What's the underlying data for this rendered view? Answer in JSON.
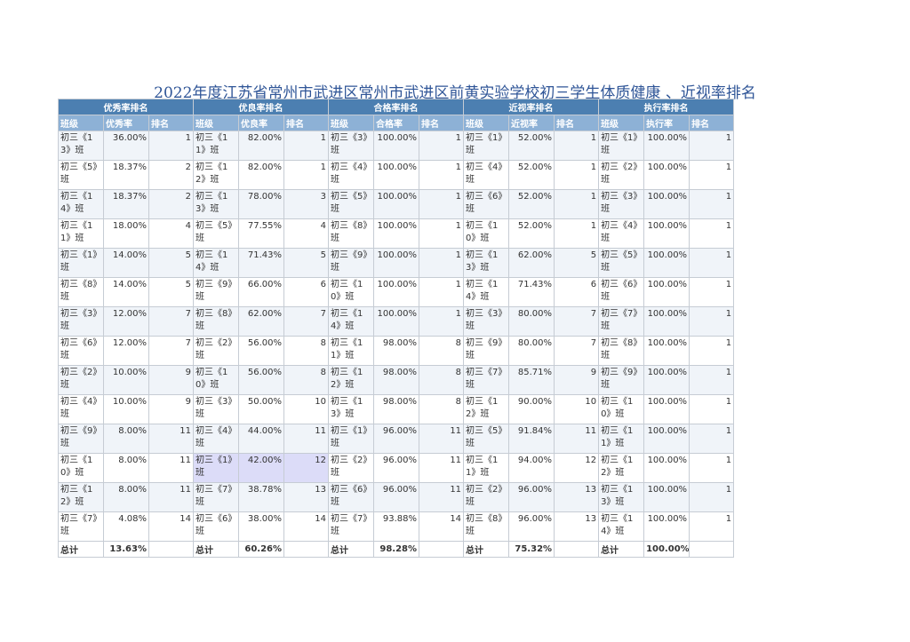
{
  "title": "2022年度江苏省常州市武进区常州市武进区前黄实验学校初三学生体质健康 、近视率排名",
  "groups": [
    {
      "header": "优秀率排名",
      "cols": [
        "班级",
        "优秀率",
        "排名"
      ],
      "rows": [
        [
          "初三《13》班",
          "36.00%",
          "1"
        ],
        [
          "初三《5》班",
          "18.37%",
          "2"
        ],
        [
          "初三《14》班",
          "18.37%",
          "2"
        ],
        [
          "初三《11》班",
          "18.00%",
          "4"
        ],
        [
          "初三《1》班",
          "14.00%",
          "5"
        ],
        [
          "初三《8》班",
          "14.00%",
          "5"
        ],
        [
          "初三《3》班",
          "12.00%",
          "7"
        ],
        [
          "初三《6》班",
          "12.00%",
          "7"
        ],
        [
          "初三《2》班",
          "10.00%",
          "9"
        ],
        [
          "初三《4》班",
          "10.00%",
          "9"
        ],
        [
          "初三《9》班",
          "8.00%",
          "11"
        ],
        [
          "初三《10》班",
          "8.00%",
          "11"
        ],
        [
          "初三《12》班",
          "8.00%",
          "11"
        ],
        [
          "初三《7》班",
          "4.08%",
          "14"
        ]
      ],
      "total_label": "总计",
      "total_value": "13.63%"
    },
    {
      "header": "优良率排名",
      "cols": [
        "班级",
        "优良率",
        "排名"
      ],
      "rows": [
        [
          "初三《11》班",
          "82.00%",
          "1"
        ],
        [
          "初三《12》班",
          "82.00%",
          "1"
        ],
        [
          "初三《13》班",
          "78.00%",
          "3"
        ],
        [
          "初三《5》班",
          "77.55%",
          "4"
        ],
        [
          "初三《14》班",
          "71.43%",
          "5"
        ],
        [
          "初三《9》班",
          "66.00%",
          "6"
        ],
        [
          "初三《8》班",
          "62.00%",
          "7"
        ],
        [
          "初三《2》班",
          "56.00%",
          "8"
        ],
        [
          "初三《10》班",
          "56.00%",
          "8"
        ],
        [
          "初三《3》班",
          "50.00%",
          "10"
        ],
        [
          "初三《4》班",
          "44.00%",
          "11"
        ],
        [
          "初三《1》班",
          "42.00%",
          "12"
        ],
        [
          "初三《7》班",
          "38.78%",
          "13"
        ],
        [
          "初三《6》班",
          "38.00%",
          "14"
        ]
      ],
      "total_label": "总计",
      "total_value": "60.26%"
    },
    {
      "header": "合格率排名",
      "cols": [
        "班级",
        "合格率",
        "排名"
      ],
      "rows": [
        [
          "初三《3》班",
          "100.00%",
          "1"
        ],
        [
          "初三《4》班",
          "100.00%",
          "1"
        ],
        [
          "初三《5》班",
          "100.00%",
          "1"
        ],
        [
          "初三《8》班",
          "100.00%",
          "1"
        ],
        [
          "初三《9》班",
          "100.00%",
          "1"
        ],
        [
          "初三《10》班",
          "100.00%",
          "1"
        ],
        [
          "初三《14》班",
          "100.00%",
          "1"
        ],
        [
          "初三《11》班",
          "98.00%",
          "8"
        ],
        [
          "初三《12》班",
          "98.00%",
          "8"
        ],
        [
          "初三《13》班",
          "98.00%",
          "8"
        ],
        [
          "初三《1》班",
          "96.00%",
          "11"
        ],
        [
          "初三《2》班",
          "96.00%",
          "11"
        ],
        [
          "初三《6》班",
          "96.00%",
          "11"
        ],
        [
          "初三《7》班",
          "93.88%",
          "14"
        ]
      ],
      "total_label": "总计",
      "total_value": "98.28%"
    },
    {
      "header": "近视率排名",
      "cols": [
        "班级",
        "近视率",
        "排名"
      ],
      "rows": [
        [
          "初三《1》班",
          "52.00%",
          "1"
        ],
        [
          "初三《4》班",
          "52.00%",
          "1"
        ],
        [
          "初三《6》班",
          "52.00%",
          "1"
        ],
        [
          "初三《10》班",
          "52.00%",
          "1"
        ],
        [
          "初三《13》班",
          "62.00%",
          "5"
        ],
        [
          "初三《14》班",
          "71.43%",
          "6"
        ],
        [
          "初三《3》班",
          "80.00%",
          "7"
        ],
        [
          "初三《9》班",
          "80.00%",
          "7"
        ],
        [
          "初三《7》班",
          "85.71%",
          "9"
        ],
        [
          "初三《12》班",
          "90.00%",
          "10"
        ],
        [
          "初三《5》班",
          "91.84%",
          "11"
        ],
        [
          "初三《11》班",
          "94.00%",
          "12"
        ],
        [
          "初三《2》班",
          "96.00%",
          "13"
        ],
        [
          "初三《8》班",
          "96.00%",
          "13"
        ]
      ],
      "total_label": "总计",
      "total_value": "75.32%"
    },
    {
      "header": "执行率排名",
      "cols": [
        "班级",
        "执行率",
        "排名"
      ],
      "rows": [
        [
          "初三《1》班",
          "100.00%",
          "1"
        ],
        [
          "初三《2》班",
          "100.00%",
          "1"
        ],
        [
          "初三《3》班",
          "100.00%",
          "1"
        ],
        [
          "初三《4》班",
          "100.00%",
          "1"
        ],
        [
          "初三《5》班",
          "100.00%",
          "1"
        ],
        [
          "初三《6》班",
          "100.00%",
          "1"
        ],
        [
          "初三《7》班",
          "100.00%",
          "1"
        ],
        [
          "初三《8》班",
          "100.00%",
          "1"
        ],
        [
          "初三《9》班",
          "100.00%",
          "1"
        ],
        [
          "初三《10》班",
          "100.00%",
          "1"
        ],
        [
          "初三《11》班",
          "100.00%",
          "1"
        ],
        [
          "初三《12》班",
          "100.00%",
          "1"
        ],
        [
          "初三《13》班",
          "100.00%",
          "1"
        ],
        [
          "初三《14》班",
          "100.00%",
          "1"
        ]
      ],
      "total_label": "总计",
      "total_value": "100.00%"
    }
  ],
  "colors": {
    "title": "#2f5597",
    "band_header": "#4c7fb1",
    "sub_header": "#8db1d6",
    "row_alt": "#f0f4f9",
    "selected_cell": "#dcdcf8"
  }
}
